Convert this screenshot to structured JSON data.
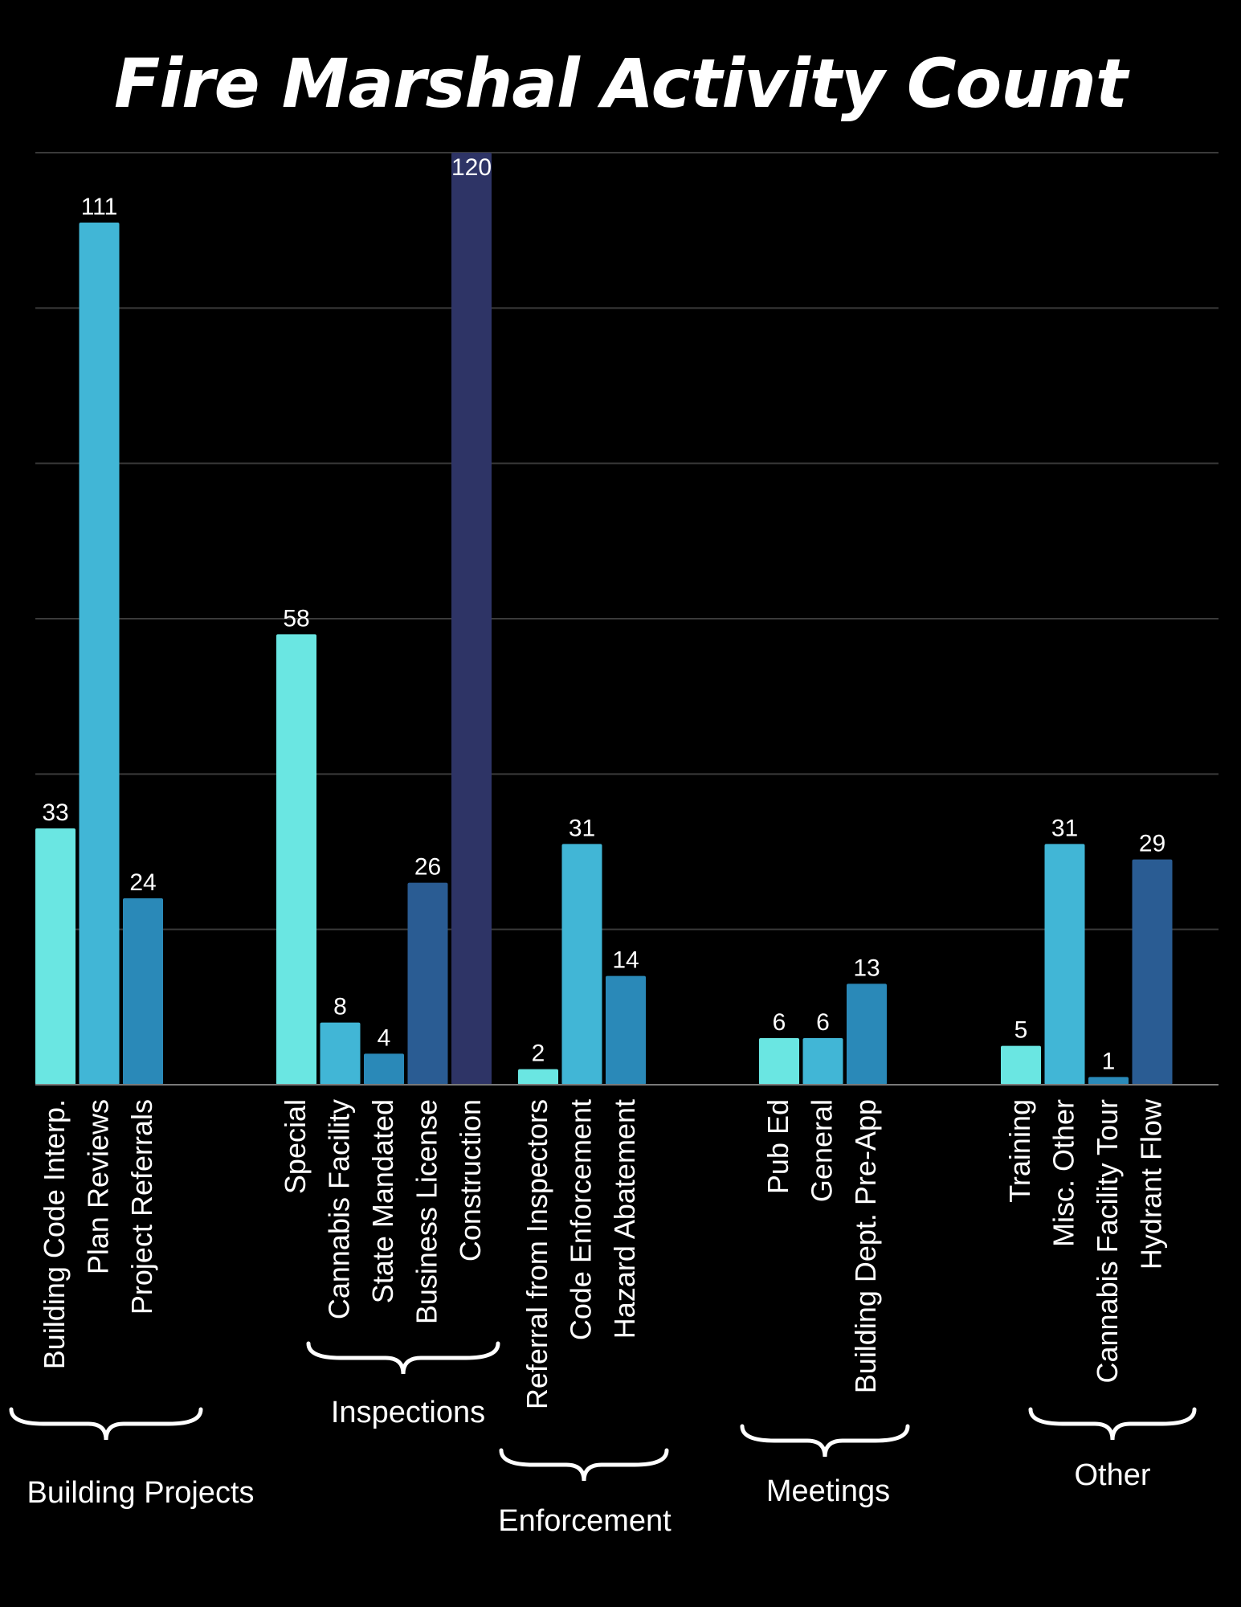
{
  "chart_data": {
    "type": "bar",
    "title": "Fire Marshal Activity Count",
    "xlabel": "",
    "ylabel": "",
    "ylim": [
      0,
      120
    ],
    "grid": true,
    "legend": "none",
    "categories": [
      "Building Code Interp.",
      "Plan Reviews",
      "Project Referrals",
      "Special",
      "Cannabis Facility",
      "State Mandated",
      "Business License",
      "Construction",
      "Referral from Inspectors",
      "Code Enforcement",
      "Hazard Abatement",
      "Pub Ed",
      "General",
      "Building Dept. Pre-App",
      "Training",
      "Misc. Other",
      "Cannabis Facility Tour",
      "Hydrant Flow"
    ],
    "values": [
      33,
      111,
      24,
      58,
      8,
      4,
      26,
      120,
      2,
      31,
      14,
      6,
      6,
      13,
      5,
      31,
      1,
      29
    ],
    "groups": [
      {
        "name": "Building Projects",
        "members": [
          "Building Code Interp.",
          "Plan Reviews",
          "Project Referrals"
        ]
      },
      {
        "name": "Inspections",
        "members": [
          "Special",
          "Cannabis Facility",
          "State Mandated",
          "Business License",
          "Construction"
        ]
      },
      {
        "name": "Enforcement",
        "members": [
          "Referral from Inspectors",
          "Code Enforcement",
          "Hazard Abatement"
        ]
      },
      {
        "name": "Meetings",
        "members": [
          "Pub Ed",
          "General",
          "Building Dept. Pre-App"
        ]
      },
      {
        "name": "Other",
        "members": [
          "Training",
          "Misc. Other",
          "Cannabis Facility Tour",
          "Hydrant Flow"
        ]
      }
    ],
    "colors": {
      "background": "#000000",
      "text": "#ffffff",
      "gridline": "#3a3a3a",
      "bar_shades": [
        "#6ae6e2",
        "#41b6d6",
        "#2a89b8",
        "#2a5c93",
        "#2e3466"
      ]
    }
  }
}
